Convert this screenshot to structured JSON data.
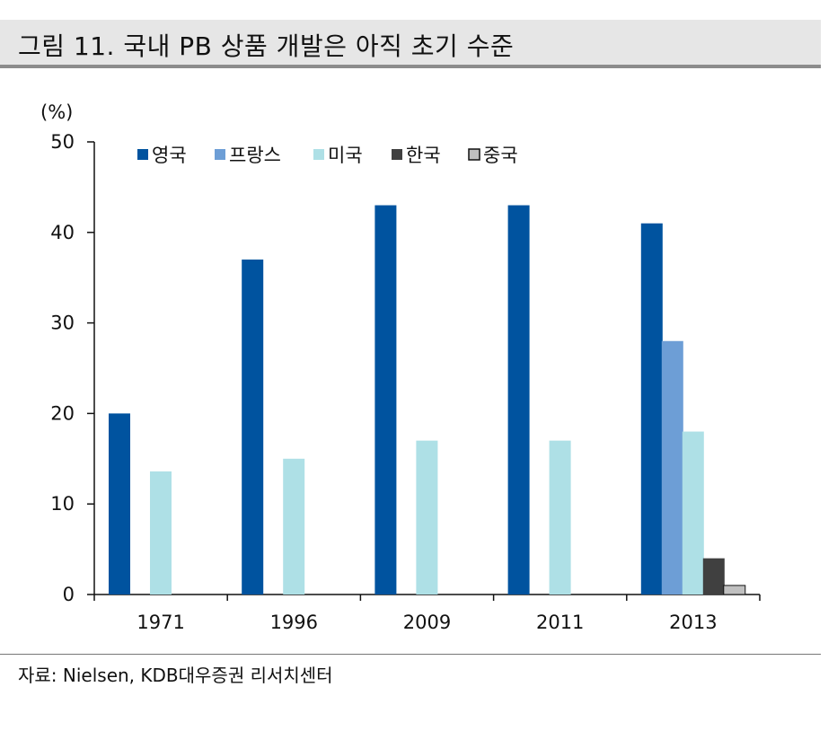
{
  "figure": {
    "title": "그림 11. 국내 PB 상품 개발은 아직 초기 수준",
    "source": "자료: Nielsen, KDB대우증권 리서치센터"
  },
  "chart_data": {
    "type": "bar",
    "title": "",
    "ylabel": "(%)",
    "xlabel": "",
    "ylim": [
      0,
      50
    ],
    "yticks": [
      0,
      10,
      20,
      30,
      40,
      50
    ],
    "categories": [
      "1971",
      "1996",
      "2009",
      "2011",
      "2013"
    ],
    "legend_position": "top",
    "grid": false,
    "series": [
      {
        "name": "영국",
        "color": "#00539f",
        "values": [
          20,
          37,
          43,
          43,
          41
        ]
      },
      {
        "name": "프랑스",
        "color": "#6d9ed6",
        "values": [
          null,
          null,
          null,
          null,
          28
        ]
      },
      {
        "name": "미국",
        "color": "#aee0e6",
        "values": [
          13.6,
          15,
          17,
          17,
          18
        ]
      },
      {
        "name": "한국",
        "color": "#404040",
        "values": [
          null,
          null,
          null,
          null,
          4
        ]
      },
      {
        "name": "중국",
        "color": "#c0c0c0",
        "values": [
          null,
          null,
          null,
          null,
          1
        ]
      }
    ]
  }
}
